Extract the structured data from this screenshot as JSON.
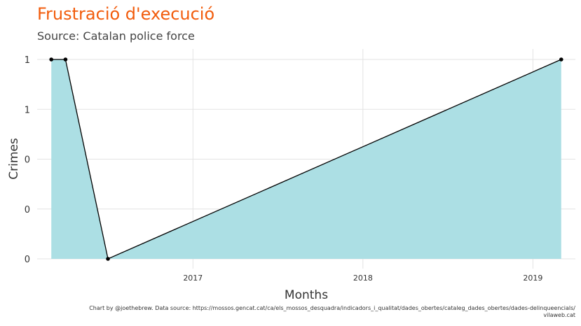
{
  "chart_data": {
    "type": "area",
    "title": "Frustració d'execució",
    "subtitle": "Source: Catalan police force",
    "xlabel": "Months",
    "ylabel": "Crimes",
    "x": [
      "2016-03",
      "2016-04",
      "2016-07",
      "2019-03"
    ],
    "values": [
      1,
      1,
      0,
      1
    ],
    "xlim": [
      "2016-02",
      "2019-04"
    ],
    "ylim": [
      0,
      1
    ],
    "x_ticks": [
      {
        "date": "2017-01",
        "label": "2017"
      },
      {
        "date": "2018-01",
        "label": "2018"
      },
      {
        "date": "2019-01",
        "label": "2019"
      }
    ],
    "y_tick_values": [
      0,
      0.25,
      0.5,
      0.75,
      1
    ],
    "y_tick_labels": [
      "0",
      "0",
      "0",
      "1",
      "1"
    ],
    "grid": true,
    "legend": "none",
    "fill_color": "#acdfe4",
    "line_color": "#000000",
    "caption_line1": "Chart by @joethebrew. Data source: https://mossos.gencat.cat/ca/els_mossos_desquadra/indicadors_i_qualitat/dades_obertes/cataleg_dades_obertes/dades-delinqueencials/",
    "caption_line2": "vilaweb.cat"
  }
}
